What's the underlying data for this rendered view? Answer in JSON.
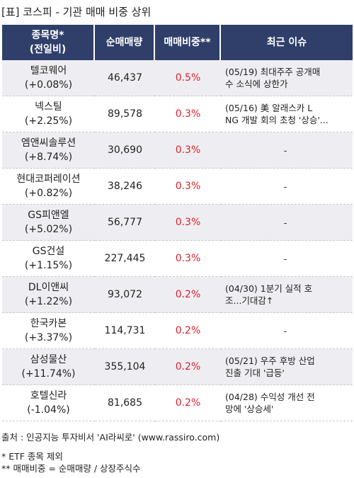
{
  "title": "[표] 코스피 - 기관 매매 비중 상위",
  "headers": {
    "name_line1": "종목명*",
    "name_line2": "(전일비)",
    "volume": "순매매량",
    "ratio": "매매비중**",
    "issue": "최근 이슈"
  },
  "rows": [
    {
      "name": "텔코웨어",
      "change": "(+0.08%)",
      "volume": "46,437",
      "ratio": "0.5%",
      "issue_line1": "(05/19) 최대주주 공개매",
      "issue_line2": "수 소식에 상한가"
    },
    {
      "name": "넥스틸",
      "change": "(+2.25%)",
      "volume": "89,578",
      "ratio": "0.3%",
      "issue_line1": "(05/16) 美 알래스카 L",
      "issue_line2": "NG 개발 회의 초청 '상승'..."
    },
    {
      "name": "엠앤씨솔루션",
      "change": "(+8.74%)",
      "volume": "30,690",
      "ratio": "0.3%",
      "issue_line1": "-",
      "issue_line2": ""
    },
    {
      "name": "현대코퍼레이션",
      "change": "(+0.82%)",
      "volume": "38,246",
      "ratio": "0.3%",
      "issue_line1": "-",
      "issue_line2": ""
    },
    {
      "name": "GS피앤엘",
      "change": "(+5.02%)",
      "volume": "56,777",
      "ratio": "0.3%",
      "issue_line1": "-",
      "issue_line2": ""
    },
    {
      "name": "GS건설",
      "change": "(+1.15%)",
      "volume": "227,445",
      "ratio": "0.3%",
      "issue_line1": "-",
      "issue_line2": ""
    },
    {
      "name": "DL이앤씨",
      "change": "(+1.22%)",
      "volume": "93,072",
      "ratio": "0.2%",
      "issue_line1": "(04/30) 1분기 실적 호",
      "issue_line2": "조...기대감↑"
    },
    {
      "name": "한국카본",
      "change": "(+3.37%)",
      "volume": "114,731",
      "ratio": "0.2%",
      "issue_line1": "-",
      "issue_line2": ""
    },
    {
      "name": "삼성물산",
      "change": "(+11.74%)",
      "volume": "355,104",
      "ratio": "0.2%",
      "issue_line1": "(05/21) 우주 후방 산업",
      "issue_line2": " 진출 기대 '급등'"
    },
    {
      "name": "호텔신라",
      "change": "(-1.04%)",
      "volume": "81,685",
      "ratio": "0.2%",
      "issue_line1": "(04/28) 수익성 개선 전",
      "issue_line2": "망에 '상승세'"
    }
  ],
  "footer": {
    "source": "출처 : 인공지능 투자비서 'AI라씨로' (www.rassiro.com)",
    "note1": "* ETF 종목 제외",
    "note2": "** 매매비중 = 순매매량 / 상장주식수"
  },
  "colors": {
    "header_bg": "#2f3f6a",
    "ratio_text": "#e0202b",
    "odd_row_bg": "#eeeef2"
  }
}
